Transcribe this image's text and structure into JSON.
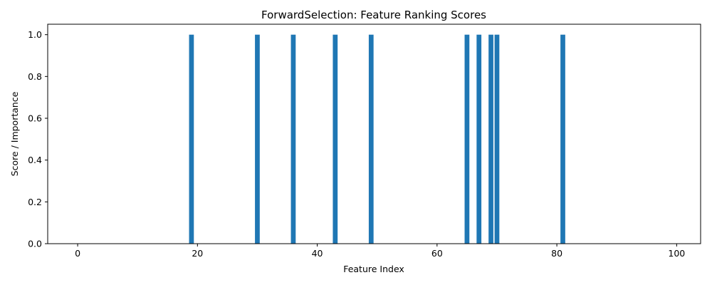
{
  "chart_data": {
    "type": "bar",
    "title": "ForwardSelection: Feature Ranking Scores",
    "xlabel": "Feature Index",
    "ylabel": "Score / Importance",
    "xlim": [
      -5,
      104
    ],
    "ylim": [
      0,
      1.05
    ],
    "x_ticks": [
      0,
      20,
      40,
      60,
      80,
      100
    ],
    "y_ticks": [
      0.0,
      0.2,
      0.4,
      0.6,
      0.8,
      1.0
    ],
    "x_tick_labels": [
      "0",
      "20",
      "40",
      "60",
      "80",
      "100"
    ],
    "y_tick_labels": [
      "0.0",
      "0.2",
      "0.4",
      "0.6",
      "0.8",
      "1.0"
    ],
    "bar_color": "#1f77b4",
    "grid": false,
    "x": [
      19,
      30,
      36,
      43,
      49,
      65,
      67,
      69,
      70,
      81
    ],
    "values": [
      1.0,
      1.0,
      1.0,
      1.0,
      1.0,
      1.0,
      1.0,
      1.0,
      1.0,
      1.0
    ]
  }
}
